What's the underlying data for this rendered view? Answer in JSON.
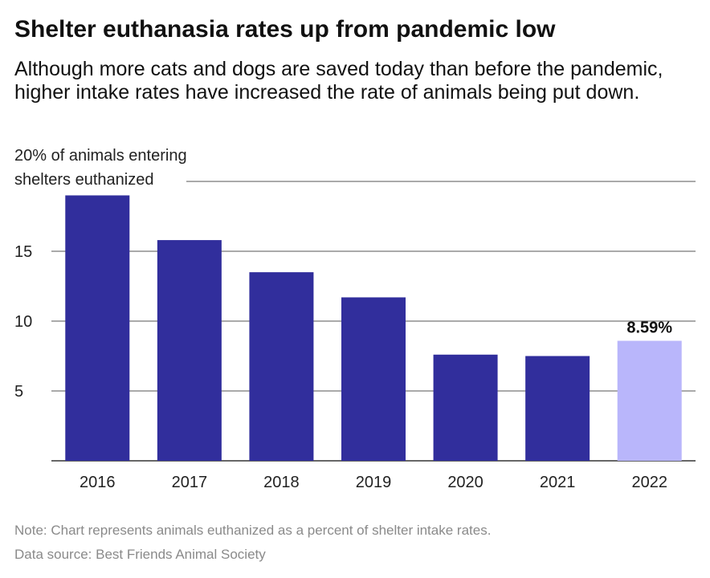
{
  "header": {
    "title": "Shelter euthanasia rates up from pandemic low",
    "subtitle": "Although more cats and dogs are saved today than before the pandemic, higher intake rates have increased the rate of animals being put down."
  },
  "footer": {
    "note": "Note: Chart represents animals euthanized as a percent of shelter intake rates.",
    "source": "Data source: Best Friends Animal Society"
  },
  "colors": {
    "bar": "#312e9c",
    "highlight_bar": "#b9b6fb",
    "gridline": "#555555",
    "note_text": "#8a8a8a"
  },
  "chart_data": {
    "type": "bar",
    "categories": [
      "2016",
      "2017",
      "2018",
      "2019",
      "2020",
      "2021",
      "2022"
    ],
    "values": [
      19.0,
      15.8,
      13.5,
      11.7,
      7.6,
      7.5,
      8.59
    ],
    "highlight_index": 6,
    "data_labels": [
      {
        "index": 6,
        "text": "8.59%"
      }
    ],
    "ylabel_lines": [
      "20% of animals entering",
      "shelters euthanized"
    ],
    "yticks": [
      5,
      10,
      15,
      20
    ],
    "ytick_labels": [
      "5",
      "10",
      "15",
      ""
    ],
    "ylim": [
      0,
      20
    ],
    "grid": true,
    "legend": "none"
  }
}
